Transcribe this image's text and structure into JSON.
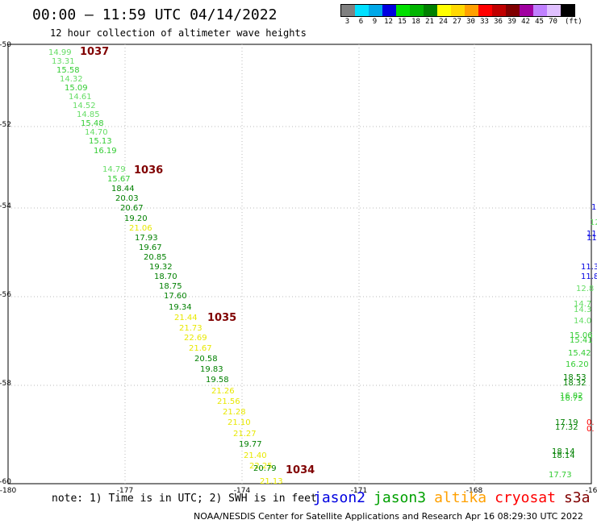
{
  "header": {
    "title": "00:00 – 11:59 UTC 04/14/2022",
    "subtitle": "12 hour collection of altimeter wave heights"
  },
  "legend": {
    "colors": [
      "#808080",
      "#00e0ff",
      "#00a8e8",
      "#0000e0",
      "#00e000",
      "#00b400",
      "#008000",
      "#ffff00",
      "#ffd800",
      "#ffa000",
      "#ff0000",
      "#c00000",
      "#800000",
      "#a000a0",
      "#c080ff",
      "#e0c0ff",
      "#000000"
    ],
    "labels": [
      "3",
      "6",
      "9",
      "12",
      "15",
      "18",
      "21",
      "24",
      "27",
      "30",
      "33",
      "36",
      "39",
      "42",
      "45",
      "70",
      "(ft)"
    ]
  },
  "axes": {
    "x_ticks": [
      "-180",
      "-177",
      "-174",
      "-171",
      "-168",
      "-16"
    ],
    "y_ticks": [
      "-50",
      "-52",
      "-54",
      "-56",
      "-58",
      "-60"
    ]
  },
  "measurements": [
    {
      "text": "14.99",
      "color": "#66dd66"
    },
    {
      "text": "13.31",
      "color": "#66dd66"
    },
    {
      "text": "15.58",
      "color": "#33cc33"
    },
    {
      "text": "14.32",
      "color": "#66dd66"
    },
    {
      "text": "15.09",
      "color": "#33cc33"
    },
    {
      "text": "14.61",
      "color": "#66dd66"
    },
    {
      "text": "14.52",
      "color": "#66dd66"
    },
    {
      "text": "14.85",
      "color": "#66dd66"
    },
    {
      "text": "15.48",
      "color": "#33cc33"
    },
    {
      "text": "14.70",
      "color": "#66dd66"
    },
    {
      "text": "15.13",
      "color": "#33cc33"
    },
    {
      "text": "16.19",
      "color": "#33cc33"
    },
    {
      "text": "14.79",
      "color": "#66dd66"
    },
    {
      "text": "15.67",
      "color": "#33cc33"
    },
    {
      "text": "18.44",
      "color": "#008000"
    },
    {
      "text": "20.03",
      "color": "#008000"
    },
    {
      "text": "20.67",
      "color": "#008000"
    },
    {
      "text": "19.20",
      "color": "#008000"
    },
    {
      "text": "21.06",
      "color": "#e8e800"
    },
    {
      "text": "17.93",
      "color": "#008000"
    },
    {
      "text": "19.67",
      "color": "#008000"
    },
    {
      "text": "20.85",
      "color": "#008000"
    },
    {
      "text": "19.32",
      "color": "#008000"
    },
    {
      "text": "18.70",
      "color": "#008000"
    },
    {
      "text": "18.75",
      "color": "#008000"
    },
    {
      "text": "17.60",
      "color": "#008000"
    },
    {
      "text": "19.34",
      "color": "#008000"
    },
    {
      "text": "21.44",
      "color": "#e8e800"
    },
    {
      "text": "21.73",
      "color": "#e8e800"
    },
    {
      "text": "22.69",
      "color": "#e8e800"
    },
    {
      "text": "21.67",
      "color": "#e8e800"
    },
    {
      "text": "20.58",
      "color": "#008000"
    },
    {
      "text": "19.83",
      "color": "#008000"
    },
    {
      "text": "19.58",
      "color": "#008000"
    },
    {
      "text": "21.26",
      "color": "#e8e800"
    },
    {
      "text": "21.56",
      "color": "#e8e800"
    },
    {
      "text": "21.28",
      "color": "#e8e800"
    },
    {
      "text": "21.10",
      "color": "#e8e800"
    },
    {
      "text": "21.27",
      "color": "#e8e800"
    },
    {
      "text": "19.77",
      "color": "#008000"
    },
    {
      "text": "21.40",
      "color": "#e8e800"
    },
    {
      "text": "22.25",
      "color": "#e8e800"
    },
    {
      "text": "20.79",
      "color": "#008000"
    },
    {
      "text": "21.13",
      "color": "#e8e800"
    },
    {
      "text": "15.06",
      "color": "#33cc33"
    },
    {
      "text": "15.41",
      "color": "#33cc33"
    },
    {
      "text": "15.42",
      "color": "#33cc33"
    },
    {
      "text": "16.20",
      "color": "#33cc33"
    },
    {
      "text": "18.53",
      "color": "#008000"
    },
    {
      "text": "18.32",
      "color": "#008000"
    },
    {
      "text": "16.82",
      "color": "#33cc33"
    },
    {
      "text": "16.75",
      "color": "#33cc33"
    },
    {
      "text": "17.19",
      "color": "#008000"
    },
    {
      "text": "17.32",
      "color": "#008000"
    },
    {
      "text": "18.14",
      "color": "#008000"
    },
    {
      "text": "18.14",
      "color": "#008000"
    },
    {
      "text": "17.73",
      "color": "#33cc33"
    },
    {
      "text": "14.7",
      "color": "#66dd66"
    },
    {
      "text": "14.3",
      "color": "#66dd66"
    },
    {
      "text": "14.0",
      "color": "#66dd66"
    },
    {
      "text": "12.8",
      "color": "#66dd66"
    },
    {
      "text": "11.3",
      "color": "#0000e0"
    },
    {
      "text": "11.8",
      "color": "#0000e0"
    },
    {
      "text": "12",
      "color": "#66dd66"
    },
    {
      "text": "11",
      "color": "#0000e0"
    },
    {
      "text": "11",
      "color": "#0000e0"
    },
    {
      "text": "1",
      "color": "#0000e0"
    },
    {
      "text": "0.",
      "color": "#ff0000"
    },
    {
      "text": "0.",
      "color": "#ff0000"
    }
  ],
  "pressure_labels": [
    {
      "text": "1037",
      "color": "#800000"
    },
    {
      "text": "1036",
      "color": "#800000"
    },
    {
      "text": "1035",
      "color": "#800000"
    },
    {
      "text": "1034",
      "color": "#800000"
    }
  ],
  "satellites": [
    {
      "name": "jason2",
      "color": "#0000e0"
    },
    {
      "name": "jason3",
      "color": "#00a000"
    },
    {
      "name": "altika",
      "color": "#ffa000"
    },
    {
      "name": "cryosat",
      "color": "#ff0000"
    },
    {
      "name": "s3a",
      "color": "#800000"
    }
  ],
  "note": "note: 1) Time is in UTC; 2) SWH is in feet",
  "footer": "NOAA/NESDIS Center for Satellite Applications and Research   Apr 16 08:29:30 UTC 2022"
}
